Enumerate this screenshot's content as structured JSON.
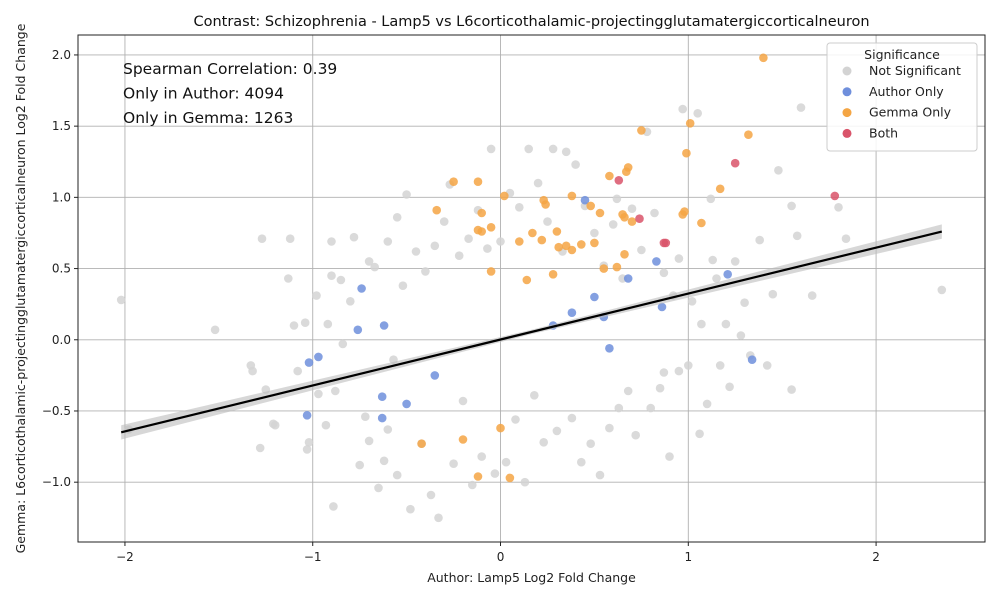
{
  "chart_data": {
    "type": "scatter",
    "title": "Contrast: Schizophrenia - Lamp5 vs L6corticothalamic-projectingglutamatergiccorticalneuron",
    "xlabel": "Author: Lamp5 Log2 Fold Change",
    "ylabel": "Gemma: L6corticothalamic-projectingglutamatergiccorticalneuron Log2 Fold Change",
    "xlim": [
      -2.25,
      2.58
    ],
    "ylim": [
      -1.42,
      2.14
    ],
    "x_ticks": [
      -2,
      -1,
      0,
      1,
      2
    ],
    "x_tick_labels": [
      "−2",
      "−1",
      "0",
      "1",
      "2"
    ],
    "y_ticks": [
      -1.0,
      -0.5,
      0.0,
      0.5,
      1.0,
      1.5,
      2.0
    ],
    "y_tick_labels": [
      "−1.0",
      "−0.5",
      "0.0",
      "0.5",
      "1.0",
      "1.5",
      "2.0"
    ],
    "grid": true,
    "annotations": [
      "Spearman Correlation: 0.39",
      "Only in Author: 4094",
      "Only in Gemma: 1263"
    ],
    "legend": {
      "title": "Significance",
      "placement": "top-right",
      "entries": [
        {
          "label": "Not Significant",
          "color": "#d3d3d3"
        },
        {
          "label": "Author Only",
          "color": "#6f8fdc"
        },
        {
          "label": "Gemma Only",
          "color": "#f4a544"
        },
        {
          "label": "Both",
          "color": "#d9546a"
        }
      ]
    },
    "regression_line": {
      "x": [
        -2.02,
        2.35
      ],
      "y": [
        -0.65,
        0.76
      ],
      "color": "#000000"
    },
    "series": [
      {
        "name": "Not Significant",
        "color": "#d3d3d3",
        "points": [
          [
            -2.02,
            0.28
          ],
          [
            -1.98,
            -0.63
          ],
          [
            -1.52,
            0.07
          ],
          [
            -1.33,
            -0.18
          ],
          [
            -1.32,
            -0.22
          ],
          [
            -1.28,
            -0.76
          ],
          [
            -1.27,
            0.71
          ],
          [
            -1.21,
            -0.59
          ],
          [
            -1.2,
            -0.6
          ],
          [
            -1.13,
            0.43
          ],
          [
            -1.12,
            0.71
          ],
          [
            -1.1,
            0.1
          ],
          [
            -1.08,
            -0.22
          ],
          [
            -1.04,
            0.12
          ],
          [
            -1.02,
            -0.72
          ],
          [
            -1.03,
            -0.77
          ],
          [
            -0.98,
            0.31
          ],
          [
            -0.97,
            -0.38
          ],
          [
            -0.93,
            -0.6
          ],
          [
            -0.92,
            0.11
          ],
          [
            -0.9,
            0.69
          ],
          [
            -0.89,
            -1.17
          ],
          [
            -0.88,
            -0.36
          ],
          [
            -0.85,
            0.42
          ],
          [
            -0.84,
            -0.03
          ],
          [
            -0.8,
            0.27
          ],
          [
            -0.78,
            0.72
          ],
          [
            -0.75,
            -0.88
          ],
          [
            -0.72,
            -0.54
          ],
          [
            -0.7,
            -0.71
          ],
          [
            -0.67,
            0.51
          ],
          [
            -0.65,
            -1.04
          ],
          [
            -0.62,
            -0.85
          ],
          [
            -0.6,
            0.69
          ],
          [
            -0.57,
            -0.14
          ],
          [
            -0.55,
            -0.95
          ],
          [
            -0.52,
            0.38
          ],
          [
            -0.5,
            1.02
          ],
          [
            -0.48,
            -1.19
          ],
          [
            -0.45,
            0.62
          ],
          [
            -0.42,
            -0.73
          ],
          [
            -0.4,
            0.48
          ],
          [
            -0.37,
            -1.09
          ],
          [
            -0.35,
            0.66
          ],
          [
            -0.33,
            -1.25
          ],
          [
            -0.3,
            0.83
          ],
          [
            -0.27,
            1.09
          ],
          [
            -0.25,
            -0.87
          ],
          [
            -0.22,
            0.59
          ],
          [
            -0.2,
            -0.43
          ],
          [
            -0.17,
            0.71
          ],
          [
            -0.15,
            -1.02
          ],
          [
            -0.12,
            0.91
          ],
          [
            -0.1,
            -0.82
          ],
          [
            -0.07,
            0.64
          ],
          [
            -0.05,
            1.34
          ],
          [
            -0.03,
            -0.94
          ],
          [
            0.0,
            0.69
          ],
          [
            0.03,
            -0.86
          ],
          [
            0.05,
            1.03
          ],
          [
            0.08,
            -0.56
          ],
          [
            0.1,
            0.93
          ],
          [
            0.13,
            -1.0
          ],
          [
            0.15,
            1.34
          ],
          [
            0.18,
            -0.39
          ],
          [
            0.2,
            1.1
          ],
          [
            0.23,
            -0.72
          ],
          [
            0.25,
            0.83
          ],
          [
            0.28,
            1.34
          ],
          [
            0.3,
            -0.64
          ],
          [
            0.33,
            0.62
          ],
          [
            0.35,
            1.32
          ],
          [
            0.38,
            -0.55
          ],
          [
            0.4,
            1.23
          ],
          [
            0.43,
            -0.86
          ],
          [
            0.45,
            0.94
          ],
          [
            0.48,
            -0.73
          ],
          [
            0.5,
            0.75
          ],
          [
            0.53,
            -0.95
          ],
          [
            0.55,
            0.52
          ],
          [
            0.58,
            -0.62
          ],
          [
            0.6,
            0.81
          ],
          [
            0.63,
            -0.48
          ],
          [
            0.65,
            0.43
          ],
          [
            0.68,
            -0.36
          ],
          [
            0.7,
            0.92
          ],
          [
            0.72,
            -0.67
          ],
          [
            0.75,
            0.63
          ],
          [
            0.78,
            1.46
          ],
          [
            0.8,
            -0.48
          ],
          [
            0.82,
            0.89
          ],
          [
            0.85,
            -0.34
          ],
          [
            0.87,
            0.47
          ],
          [
            0.9,
            -0.82
          ],
          [
            0.92,
            0.31
          ],
          [
            0.95,
            -0.22
          ],
          [
            0.97,
            1.62
          ],
          [
            1.0,
            -0.18
          ],
          [
            1.02,
            0.27
          ],
          [
            1.05,
            1.59
          ],
          [
            1.07,
            0.11
          ],
          [
            1.1,
            -0.45
          ],
          [
            1.12,
            0.99
          ],
          [
            1.15,
            0.43
          ],
          [
            1.17,
            -0.18
          ],
          [
            1.2,
            0.11
          ],
          [
            1.22,
            -0.33
          ],
          [
            1.25,
            0.55
          ],
          [
            1.28,
            0.03
          ],
          [
            1.3,
            0.26
          ],
          [
            1.33,
            -0.11
          ],
          [
            1.38,
            0.7
          ],
          [
            1.42,
            -0.18
          ],
          [
            1.45,
            0.32
          ],
          [
            1.48,
            1.19
          ],
          [
            1.55,
            -0.35
          ],
          [
            1.58,
            0.73
          ],
          [
            1.6,
            1.63
          ],
          [
            1.66,
            0.31
          ],
          [
            1.8,
            0.93
          ],
          [
            1.84,
            0.71
          ],
          [
            1.55,
            0.94
          ],
          [
            2.35,
            0.35
          ],
          [
            1.06,
            -0.66
          ],
          [
            0.95,
            0.57
          ],
          [
            -0.7,
            0.55
          ],
          [
            -0.6,
            -0.63
          ],
          [
            0.62,
            0.99
          ],
          [
            -0.9,
            0.45
          ],
          [
            0.87,
            -0.23
          ],
          [
            1.13,
            0.56
          ],
          [
            -1.25,
            -0.35
          ],
          [
            -0.55,
            0.86
          ]
        ]
      },
      {
        "name": "Author Only",
        "color": "#6f8fdc",
        "points": [
          [
            -1.02,
            -0.16
          ],
          [
            -0.97,
            -0.12
          ],
          [
            -1.03,
            -0.53
          ],
          [
            -0.74,
            0.36
          ],
          [
            -0.76,
            0.07
          ],
          [
            -0.62,
            0.1
          ],
          [
            -0.63,
            -0.4
          ],
          [
            -0.63,
            -0.55
          ],
          [
            -0.5,
            -0.45
          ],
          [
            0.45,
            0.98
          ],
          [
            0.83,
            0.55
          ],
          [
            0.86,
            0.23
          ],
          [
            1.21,
            0.46
          ],
          [
            1.34,
            -0.14
          ],
          [
            0.58,
            -0.06
          ],
          [
            0.68,
            0.43
          ],
          [
            0.5,
            0.3
          ],
          [
            0.38,
            0.19
          ],
          [
            0.55,
            0.16
          ],
          [
            -0.35,
            -0.25
          ],
          [
            0.28,
            0.1
          ]
        ]
      },
      {
        "name": "Gemma Only",
        "color": "#f4a544",
        "points": [
          [
            1.4,
            1.98
          ],
          [
            0.75,
            1.47
          ],
          [
            1.01,
            1.52
          ],
          [
            0.99,
            1.31
          ],
          [
            1.32,
            1.44
          ],
          [
            0.68,
            1.21
          ],
          [
            0.58,
            1.15
          ],
          [
            0.67,
            1.18
          ],
          [
            1.17,
            1.06
          ],
          [
            1.07,
            0.82
          ],
          [
            0.97,
            0.88
          ],
          [
            0.98,
            0.9
          ],
          [
            0.65,
            0.88
          ],
          [
            0.66,
            0.86
          ],
          [
            0.48,
            0.94
          ],
          [
            0.38,
            1.01
          ],
          [
            0.23,
            0.98
          ],
          [
            0.24,
            0.95
          ],
          [
            0.02,
            1.01
          ],
          [
            -0.1,
            0.89
          ],
          [
            -0.12,
            1.11
          ],
          [
            -0.25,
            1.11
          ],
          [
            -0.34,
            0.91
          ],
          [
            -0.05,
            0.79
          ],
          [
            -0.1,
            0.76
          ],
          [
            -0.12,
            0.77
          ],
          [
            0.1,
            0.69
          ],
          [
            0.17,
            0.75
          ],
          [
            0.22,
            0.7
          ],
          [
            0.3,
            0.76
          ],
          [
            0.31,
            0.65
          ],
          [
            0.35,
            0.66
          ],
          [
            0.38,
            0.63
          ],
          [
            0.43,
            0.67
          ],
          [
            0.5,
            0.68
          ],
          [
            0.53,
            0.89
          ],
          [
            0.55,
            0.5
          ],
          [
            0.62,
            0.51
          ],
          [
            0.66,
            0.6
          ],
          [
            0.7,
            0.83
          ],
          [
            -0.42,
            -0.73
          ],
          [
            -0.12,
            -0.96
          ],
          [
            0.05,
            -0.97
          ],
          [
            0.0,
            -0.62
          ],
          [
            -0.2,
            -0.7
          ],
          [
            0.28,
            0.46
          ],
          [
            0.14,
            0.42
          ],
          [
            -0.05,
            0.48
          ]
        ]
      },
      {
        "name": "Both",
        "color": "#d9546a",
        "points": [
          [
            1.25,
            1.24
          ],
          [
            0.63,
            1.12
          ],
          [
            0.74,
            0.85
          ],
          [
            0.87,
            0.68
          ],
          [
            1.78,
            1.01
          ],
          [
            0.88,
            0.68
          ]
        ]
      }
    ]
  }
}
